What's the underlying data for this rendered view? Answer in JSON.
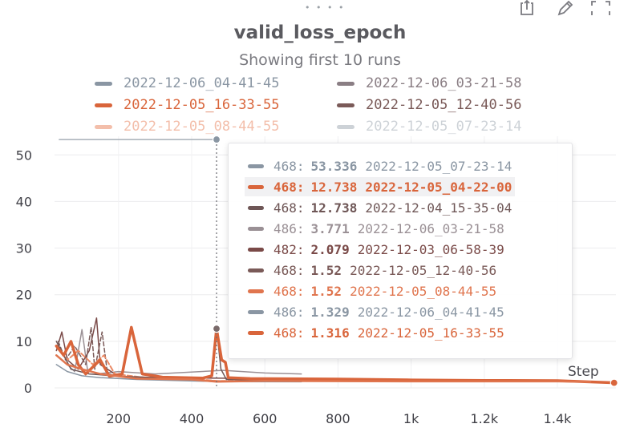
{
  "panel": {
    "title": "valid_loss_epoch",
    "subtitle": "Showing first 10 runs",
    "step_label": "Step"
  },
  "legend": [
    {
      "label": "2022-12-06_04-41-45",
      "color": "#8a96a3",
      "faded": false
    },
    {
      "label": "2022-12-06_03-21-58",
      "color": "#8a7e84",
      "faded": false
    },
    {
      "label": "2022-12-05_16-33-55",
      "color": "#d9653b",
      "faded": false
    },
    {
      "label": "2022-12-05_12-40-56",
      "color": "#7a5a58",
      "faded": false
    },
    {
      "label": "2022-12-05_08-44-55",
      "color": "#ea8a66",
      "faded": true
    },
    {
      "label": "2022-12-05_07-23-14",
      "color": "#a6afb8",
      "faded": true
    }
  ],
  "tooltip": {
    "rows": [
      {
        "step": "468:",
        "value": "53.336",
        "run": "2022-12-05_07-23-14",
        "color": "#8a96a3",
        "highlight": false
      },
      {
        "step": "468:",
        "value": "12.738",
        "run": "2022-12-05_04-22-00",
        "color": "#d9653b",
        "highlight": true
      },
      {
        "step": "468:",
        "value": "12.738",
        "run": "2022-12-04_15-35-04",
        "color": "#6e5656",
        "highlight": false
      },
      {
        "step": "486:",
        "value": "3.771",
        "run": "2022-12-06_03-21-58",
        "color": "#9a9095",
        "highlight": false
      },
      {
        "step": "482:",
        "value": "2.079",
        "run": "2022-12-03_06-58-39",
        "color": "#7a4a48",
        "highlight": false
      },
      {
        "step": "468:",
        "value": "1.52",
        "run": "2022-12-05_12-40-56",
        "color": "#7a5a58",
        "highlight": false
      },
      {
        "step": "468:",
        "value": "1.52",
        "run": "2022-12-05_08-44-55",
        "color": "#e0754e",
        "highlight": false
      },
      {
        "step": "486:",
        "value": "1.329",
        "run": "2022-12-06_04-41-45",
        "color": "#8a96a3",
        "highlight": false
      },
      {
        "step": "468:",
        "value": "1.316",
        "run": "2022-12-05_16-33-55",
        "color": "#d9653b",
        "highlight": false
      }
    ]
  },
  "chart_data": {
    "type": "line",
    "xlim": [
      25,
      1560
    ],
    "ylim": [
      0,
      54
    ],
    "xticks": [
      {
        "v": 200,
        "label": "200"
      },
      {
        "v": 400,
        "label": "400"
      },
      {
        "v": 600,
        "label": "600"
      },
      {
        "v": 800,
        "label": "800"
      },
      {
        "v": 1000,
        "label": "1k"
      },
      {
        "v": 1200,
        "label": "1.2k"
      },
      {
        "v": 1400,
        "label": "1.4k"
      }
    ],
    "yticks": [
      0,
      10,
      20,
      30,
      40,
      50
    ],
    "hover_x": 468,
    "series": [
      {
        "color": "#a6afb8",
        "width": 1.5,
        "dash": "",
        "points": [
          [
            38,
            53.3
          ],
          [
            468,
            53.3
          ]
        ]
      },
      {
        "color": "#8a96a3",
        "width": 1.5,
        "dash": "",
        "points": [
          [
            30,
            5
          ],
          [
            60,
            3.5
          ],
          [
            100,
            2.6
          ],
          [
            150,
            2.2
          ],
          [
            250,
            1.8
          ],
          [
            486,
            1.33
          ],
          [
            700,
            1.3
          ]
        ]
      },
      {
        "color": "#9a9095",
        "width": 1.5,
        "dash": "",
        "points": [
          [
            30,
            7
          ],
          [
            60,
            5
          ],
          [
            80,
            3.5
          ],
          [
            100,
            12.5
          ],
          [
            115,
            4
          ],
          [
            140,
            3
          ],
          [
            200,
            3.5
          ],
          [
            300,
            3
          ],
          [
            486,
            3.77
          ],
          [
            600,
            3.2
          ],
          [
            700,
            3
          ]
        ]
      },
      {
        "color": "#7a4a48",
        "width": 1.5,
        "dash": "",
        "points": [
          [
            30,
            8
          ],
          [
            45,
            12
          ],
          [
            60,
            6
          ],
          [
            90,
            4
          ],
          [
            120,
            8
          ],
          [
            140,
            15
          ],
          [
            150,
            5
          ],
          [
            200,
            2.5
          ],
          [
            300,
            2.2
          ],
          [
            482,
            2.08
          ],
          [
            540,
            2
          ]
        ]
      },
      {
        "color": "#7a5a58",
        "width": 1.5,
        "dash": "5,3",
        "points": [
          [
            35,
            10
          ],
          [
            55,
            6
          ],
          [
            80,
            9
          ],
          [
            110,
            5
          ],
          [
            125,
            13
          ],
          [
            135,
            4
          ],
          [
            155,
            12
          ],
          [
            170,
            3
          ],
          [
            210,
            2.5
          ],
          [
            468,
            1.52
          ],
          [
            600,
            1.5
          ]
        ]
      },
      {
        "color": "#ea8a66",
        "width": 2,
        "dash": "6,3",
        "points": [
          [
            30,
            9
          ],
          [
            60,
            6
          ],
          [
            90,
            8
          ],
          [
            130,
            5
          ],
          [
            160,
            7
          ],
          [
            190,
            3
          ],
          [
            260,
            2.3
          ],
          [
            400,
            2
          ],
          [
            468,
            1.52
          ],
          [
            700,
            1.5
          ]
        ]
      },
      {
        "color": "#6e5656",
        "width": 1.5,
        "dash": "",
        "points": [
          [
            30,
            10
          ],
          [
            70,
            4
          ],
          [
            120,
            3
          ],
          [
            200,
            2.5
          ],
          [
            300,
            2.2
          ],
          [
            420,
            2
          ],
          [
            455,
            2.5
          ],
          [
            468,
            12.7
          ],
          [
            480,
            4
          ],
          [
            495,
            1.8
          ],
          [
            700,
            1.6
          ]
        ]
      },
      {
        "color": "#d9653b",
        "width": 3.5,
        "dash": "",
        "points": [
          [
            30,
            9
          ],
          [
            50,
            7
          ],
          [
            70,
            10
          ],
          [
            90,
            5
          ],
          [
            110,
            3
          ],
          [
            130,
            4.5
          ],
          [
            150,
            6
          ],
          [
            175,
            2.5
          ],
          [
            210,
            3
          ],
          [
            235,
            13
          ],
          [
            265,
            3
          ],
          [
            320,
            2.3
          ],
          [
            430,
            2.1
          ],
          [
            455,
            2.6
          ],
          [
            468,
            12.7
          ],
          [
            482,
            6
          ],
          [
            492,
            5.5
          ],
          [
            500,
            2.2
          ],
          [
            560,
            2
          ],
          [
            800,
            1.9
          ],
          [
            1000,
            1.7
          ],
          [
            1200,
            1.6
          ],
          [
            1400,
            1.55
          ],
          [
            1555,
            1.1
          ]
        ]
      },
      {
        "color": "#e0754e",
        "width": 2.5,
        "dash": "",
        "points": [
          [
            30,
            7
          ],
          [
            60,
            5
          ],
          [
            100,
            4
          ],
          [
            150,
            3
          ],
          [
            250,
            2
          ],
          [
            400,
            1.8
          ],
          [
            468,
            1.32
          ],
          [
            600,
            1.5
          ],
          [
            1000,
            1.4
          ],
          [
            1400,
            1.4
          ],
          [
            1490,
            1.3
          ]
        ]
      }
    ],
    "markers": [
      {
        "x": 468,
        "y": 53.3,
        "color": "#8a96a3"
      },
      {
        "x": 468,
        "y": 12.7,
        "color": "#7a6a6a"
      },
      {
        "x": 1555,
        "y": 1.1,
        "color": "#d9653b"
      }
    ]
  }
}
